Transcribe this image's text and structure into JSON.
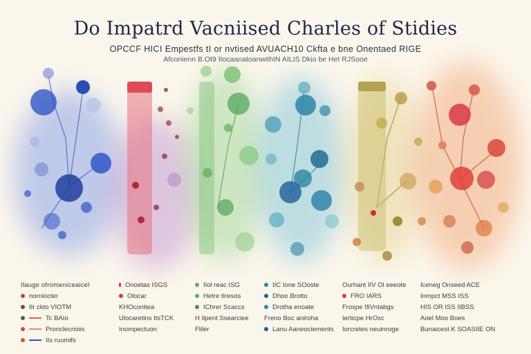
{
  "title": "Do Impatrd Vacniised Charles of Stidies",
  "subtitle_line1": "OPCCF HICI Empestfs tI or nvtised AVUACH10  Ckfta e bne  Onentaed RIGE",
  "subtitle_line2": "Afconienn B.Ot9 IIocaanatoanwithIN AILIS Dkio be HeI RJSooe",
  "colors": {
    "blue": "#2f57c4",
    "red": "#d83a48",
    "purple": "#9a5bb4",
    "green": "#5faf55",
    "teal": "#2d86a6",
    "olive": "#b9a24a",
    "orange": "#e0763a",
    "ink": "#1e2748"
  },
  "legends": [
    {
      "rows": [
        "Ilauge ofromeniceaicel",
        "nornlocter",
        "IIr ckto  VIOTM",
        "Tc  BAIo",
        "Pronclecrioiis",
        "IIs ruumifs"
      ]
    },
    {
      "rows": [
        "Onoetas ISGS",
        "Olocar",
        "KHOcontiea",
        "Ulocaretins ItsTCK",
        "Inompectuon"
      ]
    },
    {
      "rows": [
        "IIol  reac  ISG",
        "Hetre tIresos",
        "IChrer Scaccs",
        "H Ilpent Ssearciee",
        "Fliler"
      ]
    },
    {
      "rows": [
        "IIC Ione   SOoste",
        "Dhoo  Brotto",
        "Drotha enoate",
        "Freno Boc aniroha",
        "Lanu Aaneociements"
      ]
    },
    {
      "rows": [
        "Ourhant  IIV Ol eeeote",
        "FRO  IARS",
        "Frospe  IfiVntabgs",
        "Ierticpe HrOsc",
        "Iorcretes neuinroge"
      ]
    },
    {
      "rows": [
        "Iceneg  Onseed ACE",
        "Inmpct  MSS  ISS",
        "HIS OR ISS IIBSS",
        "Aoel Moo Boes",
        "Bunaicest K SOASIIE ON"
      ]
    }
  ]
}
